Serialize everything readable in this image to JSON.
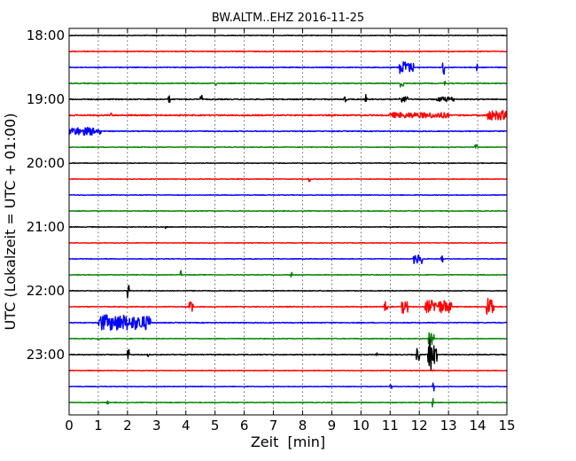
{
  "chart_data": {
    "type": "line",
    "title": "BW.ALTM..EHZ 2016-11-25",
    "xlabel": "Zeit  [min]",
    "ylabel": "UTC (Lokalzeit = UTC + 01:00)",
    "xlim": [
      0,
      15
    ],
    "x_ticks": [
      "0",
      "1",
      "2",
      "3",
      "4",
      "5",
      "6",
      "7",
      "8",
      "9",
      "10",
      "11",
      "12",
      "13",
      "14",
      "15"
    ],
    "y_ticks": [
      "18:00",
      "19:00",
      "20:00",
      "21:00",
      "22:00",
      "23:00"
    ],
    "grid": true,
    "trace_interval_min": 15,
    "colors": [
      "#000000",
      "#ff0000",
      "#0000ff",
      "#008000"
    ],
    "traces": [
      {
        "start": "18:00",
        "noise": 0.04,
        "events": []
      },
      {
        "start": "18:15",
        "noise": 0.05,
        "events": []
      },
      {
        "start": "18:30",
        "noise": 0.05,
        "events": [
          [
            11.3,
            11.6,
            0.8
          ],
          [
            11.6,
            11.8,
            0.6
          ],
          [
            12.8,
            12.85,
            1.0
          ],
          [
            13.95,
            14.0,
            0.5
          ]
        ]
      },
      {
        "start": "18:45",
        "noise": 0.05,
        "events": [
          [
            5.0,
            5.05,
            0.3
          ],
          [
            11.35,
            11.45,
            0.5
          ],
          [
            12.85,
            12.9,
            0.3
          ]
        ]
      },
      {
        "start": "19:00",
        "noise": 0.06,
        "events": [
          [
            3.4,
            3.45,
            0.5
          ],
          [
            4.5,
            4.55,
            0.5
          ],
          [
            9.4,
            9.5,
            0.4
          ],
          [
            10.15,
            10.2,
            0.6
          ],
          [
            11.3,
            11.6,
            0.4
          ],
          [
            12.6,
            13.2,
            0.3
          ]
        ]
      },
      {
        "start": "19:15",
        "noise": 0.08,
        "events": [
          [
            1.4,
            1.45,
            0.3
          ],
          [
            11.0,
            13.0,
            0.35
          ],
          [
            14.3,
            15.0,
            0.6
          ]
        ]
      },
      {
        "start": "19:30",
        "noise": 0.05,
        "events": [
          [
            0.0,
            1.0,
            0.5
          ],
          [
            1.05,
            1.1,
            0.4
          ]
        ]
      },
      {
        "start": "19:45",
        "noise": 0.04,
        "events": [
          [
            13.9,
            14.0,
            0.3
          ]
        ]
      },
      {
        "start": "20:00",
        "noise": 0.04,
        "events": []
      },
      {
        "start": "20:15",
        "noise": 0.04,
        "events": [
          [
            8.2,
            8.25,
            0.3
          ]
        ]
      },
      {
        "start": "20:30",
        "noise": 0.04,
        "events": []
      },
      {
        "start": "20:45",
        "noise": 0.04,
        "events": []
      },
      {
        "start": "21:00",
        "noise": 0.04,
        "events": [
          [
            3.3,
            3.35,
            0.2
          ]
        ]
      },
      {
        "start": "21:15",
        "noise": 0.04,
        "events": []
      },
      {
        "start": "21:30",
        "noise": 0.04,
        "events": [
          [
            11.8,
            12.1,
            0.6
          ],
          [
            12.75,
            12.8,
            0.4
          ]
        ]
      },
      {
        "start": "21:45",
        "noise": 0.04,
        "events": [
          [
            3.8,
            3.85,
            0.6
          ],
          [
            7.6,
            7.65,
            0.3
          ]
        ]
      },
      {
        "start": "22:00",
        "noise": 0.04,
        "events": [
          [
            2.0,
            2.05,
            1.0
          ]
        ]
      },
      {
        "start": "22:15",
        "noise": 0.05,
        "events": [
          [
            4.1,
            4.25,
            0.8
          ],
          [
            10.8,
            10.9,
            0.8
          ],
          [
            11.4,
            11.6,
            0.8
          ],
          [
            12.2,
            13.1,
            0.8
          ],
          [
            14.3,
            14.55,
            1.2
          ]
        ]
      },
      {
        "start": "22:30",
        "noise": 0.05,
        "events": [
          [
            1.0,
            2.0,
            1.0
          ],
          [
            2.0,
            2.2,
            0.8
          ],
          [
            2.2,
            2.8,
            0.9
          ]
        ]
      },
      {
        "start": "22:45",
        "noise": 0.04,
        "events": [
          [
            1.0,
            1.05,
            0.2
          ],
          [
            12.3,
            12.5,
            1.2
          ]
        ]
      },
      {
        "start": "23:00",
        "noise": 0.05,
        "events": [
          [
            2.0,
            2.05,
            0.8
          ],
          [
            2.7,
            2.75,
            0.3
          ],
          [
            10.5,
            10.55,
            0.3
          ],
          [
            11.9,
            12.0,
            0.8
          ],
          [
            12.3,
            12.4,
            2.0
          ],
          [
            12.4,
            12.6,
            1.2
          ]
        ]
      },
      {
        "start": "23:15",
        "noise": 0.04,
        "events": [
          [
            12.45,
            12.5,
            0.5
          ]
        ]
      },
      {
        "start": "23:30",
        "noise": 0.04,
        "events": [
          [
            11.0,
            11.05,
            0.3
          ],
          [
            12.45,
            12.5,
            0.6
          ]
        ]
      },
      {
        "start": "23:45",
        "noise": 0.04,
        "events": [
          [
            1.3,
            1.35,
            0.2
          ],
          [
            12.45,
            12.5,
            0.8
          ]
        ]
      }
    ]
  }
}
